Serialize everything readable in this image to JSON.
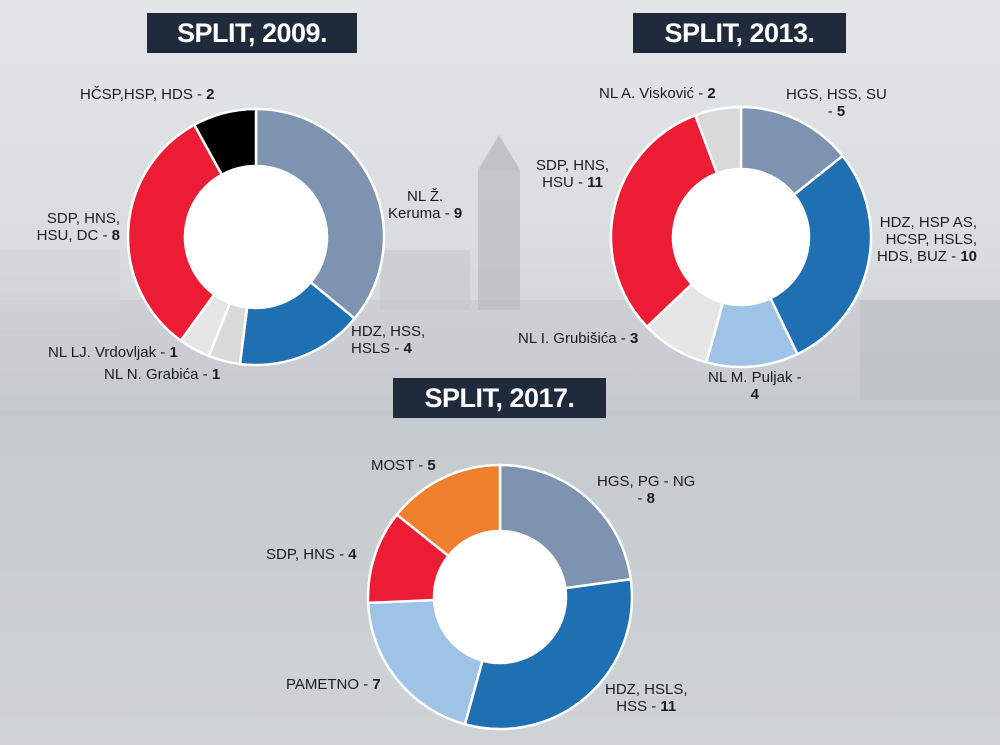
{
  "colors": {
    "title_bg": "#1f2a3c",
    "grey_blue": "#7d93b0",
    "blue": "#1f6fb3",
    "light_blue": "#9fc3e6",
    "red": "#ec1c34",
    "black": "#000000",
    "light_grey": "#d9d9d9",
    "orange": "#ee7f2d"
  },
  "chart_data": [
    {
      "type": "pie",
      "title": "SPLIT, 2009.",
      "series": [
        {
          "name": "NL Ž. Keruma",
          "value": 9,
          "color": "#7d93b0"
        },
        {
          "name": "HDZ, HSS, HSLS",
          "value": 4,
          "color": "#1f6fb3"
        },
        {
          "name": "NL N. Grabića",
          "value": 1,
          "color": "#d9d9d9"
        },
        {
          "name": "NL LJ. Vrdovljak",
          "value": 1,
          "color": "#e6e6e6"
        },
        {
          "name": "SDP, HNS, HSU, DC",
          "value": 8,
          "color": "#ec1c34"
        },
        {
          "name": "HČSP,HSP, HDS",
          "value": 2,
          "color": "#000000"
        }
      ]
    },
    {
      "type": "pie",
      "title": "SPLIT, 2013.",
      "series": [
        {
          "name": "HGS, HSS, SU",
          "value": 5,
          "color": "#7d93b0"
        },
        {
          "name": "HDZ, HSP AS, HCSP, HSLS, HDS, BUZ",
          "value": 10,
          "color": "#1f6fb3"
        },
        {
          "name": "NL M. Puljak",
          "value": 4,
          "color": "#9fc3e6"
        },
        {
          "name": "NL I. Grubišića",
          "value": 3,
          "color": "#e6e6e6"
        },
        {
          "name": "SDP, HNS, HSU",
          "value": 11,
          "color": "#ec1c34"
        },
        {
          "name": "NL A. Visković",
          "value": 2,
          "color": "#d9d9d9"
        }
      ]
    },
    {
      "type": "pie",
      "title": "SPLIT, 2017.",
      "series": [
        {
          "name": "HGS, PG - NG",
          "value": 8,
          "color": "#7d93b0"
        },
        {
          "name": "HDZ, HSLS, HSS",
          "value": 11,
          "color": "#1f6fb3"
        },
        {
          "name": "PAMETNO",
          "value": 7,
          "color": "#9fc3e6"
        },
        {
          "name": "SDP, HNS",
          "value": 4,
          "color": "#ec1c34"
        },
        {
          "name": "MOST",
          "value": 5,
          "color": "#ee7f2d"
        }
      ]
    }
  ],
  "labels": {
    "c2009": {
      "keruma_1": "NL Ž.",
      "keruma_2": "Keruma - ",
      "keruma_n": "9",
      "hdz_1": "HDZ, HSS,",
      "hdz_2": "HSLS - ",
      "hdz_n": "4",
      "grabica": "NL N. Grabića - ",
      "grabica_n": "1",
      "vrdovljak": "NL LJ. Vrdovljak - ",
      "vrdovljak_n": "1",
      "sdp_1": "SDP, HNS,",
      "sdp_2": "HSU, DC - ",
      "sdp_n": "8",
      "hcsp": "HČSP,HSP, HDS - ",
      "hcsp_n": "2"
    },
    "c2013": {
      "hgs_1": "HGS, HSS, SU",
      "hgs_2": "- ",
      "hgs_n": "5",
      "hdz_1": "HDZ, HSP AS,",
      "hdz_2": "HCSP, HSLS,",
      "hdz_3": "HDS, BUZ - ",
      "hdz_n": "10",
      "puljak_1": "NL M. Puljak -",
      "puljak_n": "4",
      "grubisica": "NL I. Grubišića - ",
      "grubisica_n": "3",
      "sdp_1": "SDP, HNS,",
      "sdp_2": "HSU - ",
      "sdp_n": "11",
      "viskovic": "NL A. Visković - ",
      "viskovic_n": "2"
    },
    "c2017": {
      "hgs_1": "HGS, PG - NG",
      "hgs_2": "- ",
      "hgs_n": "8",
      "hdz_1": "HDZ, HSLS,",
      "hdz_2": "HSS - ",
      "hdz_n": "11",
      "pametno": "PAMETNO - ",
      "pametno_n": "7",
      "sdp": "SDP, HNS - ",
      "sdp_n": "4",
      "most": "MOST - ",
      "most_n": "5"
    }
  }
}
